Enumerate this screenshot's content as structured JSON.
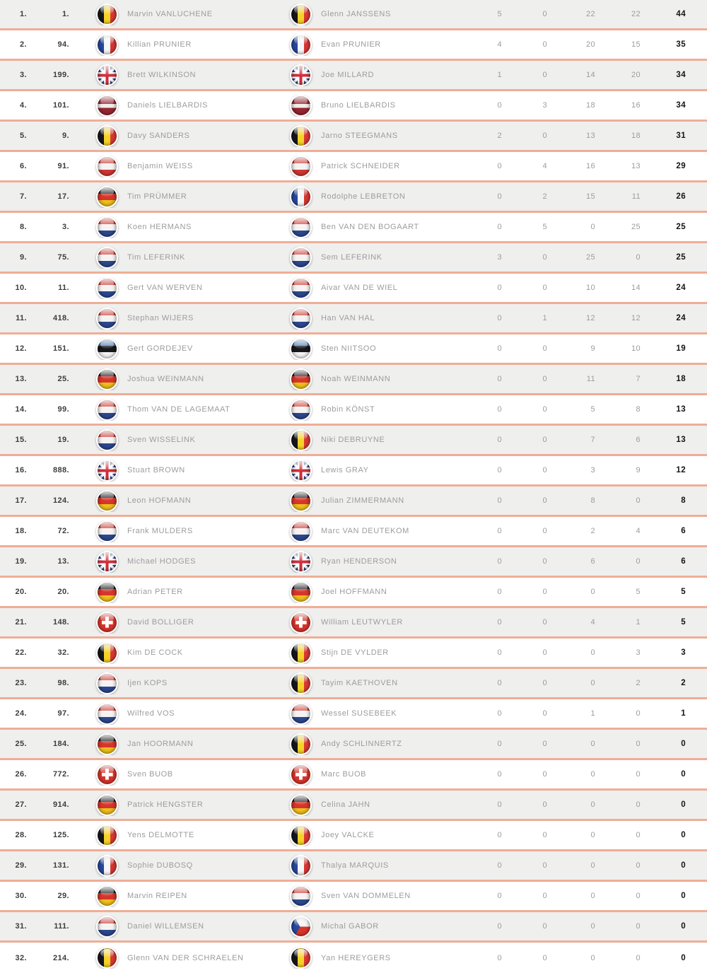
{
  "colors": {
    "row_alt_background": "#efefee",
    "row_background": "#ffffff",
    "separator": "#efad96",
    "name_text": "#9c9c9c",
    "rank_text": "#3d3d3d",
    "total_text": "#141414"
  },
  "table": {
    "rows": [
      {
        "pos": "1.",
        "num": "1.",
        "driver": "Marvin VANLUCHENE",
        "driver_country": "be",
        "passenger": "Glenn JANSSENS",
        "passenger_country": "be",
        "scores": [
          "5",
          "0",
          "22",
          "22"
        ],
        "total": "44"
      },
      {
        "pos": "2.",
        "num": "94.",
        "driver": "Killian PRUNIER",
        "driver_country": "fr",
        "passenger": "Evan PRUNIER",
        "passenger_country": "fr",
        "scores": [
          "4",
          "0",
          "20",
          "15"
        ],
        "total": "35"
      },
      {
        "pos": "3.",
        "num": "199.",
        "driver": "Brett WILKINSON",
        "driver_country": "gb",
        "passenger": "Joe MILLARD",
        "passenger_country": "gb",
        "scores": [
          "1",
          "0",
          "14",
          "20"
        ],
        "total": "34"
      },
      {
        "pos": "4.",
        "num": "101.",
        "driver": "Daniels LIELBARDIS",
        "driver_country": "lv",
        "passenger": "Bruno LIELBARDIS",
        "passenger_country": "lv",
        "scores": [
          "0",
          "3",
          "18",
          "16"
        ],
        "total": "34"
      },
      {
        "pos": "5.",
        "num": "9.",
        "driver": "Davy SANDERS",
        "driver_country": "be",
        "passenger": "Jarno STEEGMANS",
        "passenger_country": "be",
        "scores": [
          "2",
          "0",
          "13",
          "18"
        ],
        "total": "31"
      },
      {
        "pos": "6.",
        "num": "91.",
        "driver": "Benjamin WEISS",
        "driver_country": "at",
        "passenger": "Patrick SCHNEIDER",
        "passenger_country": "at",
        "scores": [
          "0",
          "4",
          "16",
          "13"
        ],
        "total": "29"
      },
      {
        "pos": "7.",
        "num": "17.",
        "driver": "Tim PRÜMMER",
        "driver_country": "de",
        "passenger": "Rodolphe LEBRETON",
        "passenger_country": "fr",
        "scores": [
          "0",
          "2",
          "15",
          "11"
        ],
        "total": "26"
      },
      {
        "pos": "8.",
        "num": "3.",
        "driver": "Koen HERMANS",
        "driver_country": "nl",
        "passenger": "Ben VAN DEN BOGAART",
        "passenger_country": "nl",
        "scores": [
          "0",
          "5",
          "0",
          "25"
        ],
        "total": "25"
      },
      {
        "pos": "9.",
        "num": "75.",
        "driver": "Tim LEFERINK",
        "driver_country": "nl",
        "passenger": "Sem LEFERINK",
        "passenger_country": "nl",
        "scores": [
          "3",
          "0",
          "25",
          "0"
        ],
        "total": "25"
      },
      {
        "pos": "10.",
        "num": "11.",
        "driver": "Gert VAN WERVEN",
        "driver_country": "nl",
        "passenger": "Aivar VAN DE WIEL",
        "passenger_country": "nl",
        "scores": [
          "0",
          "0",
          "10",
          "14"
        ],
        "total": "24"
      },
      {
        "pos": "11.",
        "num": "418.",
        "driver": "Stephan WIJERS",
        "driver_country": "nl",
        "passenger": "Han VAN HAL",
        "passenger_country": "nl",
        "scores": [
          "0",
          "1",
          "12",
          "12"
        ],
        "total": "24"
      },
      {
        "pos": "12.",
        "num": "151.",
        "driver": "Gert GORDEJEV",
        "driver_country": "ee",
        "passenger": "Sten NIITSOO",
        "passenger_country": "ee",
        "scores": [
          "0",
          "0",
          "9",
          "10"
        ],
        "total": "19"
      },
      {
        "pos": "13.",
        "num": "25.",
        "driver": "Joshua WEINMANN",
        "driver_country": "de",
        "passenger": "Noah WEINMANN",
        "passenger_country": "de",
        "scores": [
          "0",
          "0",
          "11",
          "7"
        ],
        "total": "18"
      },
      {
        "pos": "14.",
        "num": "99.",
        "driver": "Thom VAN DE LAGEMAAT",
        "driver_country": "nl",
        "passenger": "Robin KÖNST",
        "passenger_country": "nl",
        "scores": [
          "0",
          "0",
          "5",
          "8"
        ],
        "total": "13"
      },
      {
        "pos": "15.",
        "num": "19.",
        "driver": "Sven WISSELINK",
        "driver_country": "nl",
        "passenger": "Niki DEBRUYNE",
        "passenger_country": "be",
        "scores": [
          "0",
          "0",
          "7",
          "6"
        ],
        "total": "13"
      },
      {
        "pos": "16.",
        "num": "888.",
        "driver": "Stuart BROWN",
        "driver_country": "gb",
        "passenger": "Lewis GRAY",
        "passenger_country": "gb",
        "scores": [
          "0",
          "0",
          "3",
          "9"
        ],
        "total": "12"
      },
      {
        "pos": "17.",
        "num": "124.",
        "driver": "Leon HOFMANN",
        "driver_country": "de",
        "passenger": "Julian ZIMMERMANN",
        "passenger_country": "de",
        "scores": [
          "0",
          "0",
          "8",
          "0"
        ],
        "total": "8"
      },
      {
        "pos": "18.",
        "num": "72.",
        "driver": "Frank MULDERS",
        "driver_country": "nl",
        "passenger": "Marc VAN DEUTEKOM",
        "passenger_country": "nl",
        "scores": [
          "0",
          "0",
          "2",
          "4"
        ],
        "total": "6"
      },
      {
        "pos": "19.",
        "num": "13.",
        "driver": "Michael HODGES",
        "driver_country": "gb",
        "passenger": "Ryan HENDERSON",
        "passenger_country": "gb",
        "scores": [
          "0",
          "0",
          "6",
          "0"
        ],
        "total": "6"
      },
      {
        "pos": "20.",
        "num": "20.",
        "driver": "Adrian PETER",
        "driver_country": "de",
        "passenger": "Joel HOFFMANN",
        "passenger_country": "de",
        "scores": [
          "0",
          "0",
          "0",
          "5"
        ],
        "total": "5"
      },
      {
        "pos": "21.",
        "num": "148.",
        "driver": "David BOLLIGER",
        "driver_country": "ch",
        "passenger": "William LEUTWYLER",
        "passenger_country": "ch",
        "scores": [
          "0",
          "0",
          "4",
          "1"
        ],
        "total": "5"
      },
      {
        "pos": "22.",
        "num": "32.",
        "driver": "Kim DE COCK",
        "driver_country": "be",
        "passenger": "Stijn DE VYLDER",
        "passenger_country": "be",
        "scores": [
          "0",
          "0",
          "0",
          "3"
        ],
        "total": "3"
      },
      {
        "pos": "23.",
        "num": "98.",
        "driver": "Ijen KOPS",
        "driver_country": "nl",
        "passenger": "Tayim KAETHOVEN",
        "passenger_country": "be",
        "scores": [
          "0",
          "0",
          "0",
          "2"
        ],
        "total": "2"
      },
      {
        "pos": "24.",
        "num": "97.",
        "driver": "Wilfred VOS",
        "driver_country": "nl",
        "passenger": "Wessel SUSEBEEK",
        "passenger_country": "nl",
        "scores": [
          "0",
          "0",
          "1",
          "0"
        ],
        "total": "1"
      },
      {
        "pos": "25.",
        "num": "184.",
        "driver": "Jan HOORMANN",
        "driver_country": "de",
        "passenger": "Andy SCHLINNERTZ",
        "passenger_country": "be",
        "scores": [
          "0",
          "0",
          "0",
          "0"
        ],
        "total": "0"
      },
      {
        "pos": "26.",
        "num": "772.",
        "driver": "Sven BUOB",
        "driver_country": "ch",
        "passenger": "Marc BUOB",
        "passenger_country": "ch",
        "scores": [
          "0",
          "0",
          "0",
          "0"
        ],
        "total": "0"
      },
      {
        "pos": "27.",
        "num": "914.",
        "driver": "Patrick HENGSTER",
        "driver_country": "de",
        "passenger": "Celina JAHN",
        "passenger_country": "de",
        "scores": [
          "0",
          "0",
          "0",
          "0"
        ],
        "total": "0"
      },
      {
        "pos": "28.",
        "num": "125.",
        "driver": "Yens DELMOTTE",
        "driver_country": "be",
        "passenger": "Joey VALCKE",
        "passenger_country": "be",
        "scores": [
          "0",
          "0",
          "0",
          "0"
        ],
        "total": "0"
      },
      {
        "pos": "29.",
        "num": "131.",
        "driver": "Sophie DUBOSQ",
        "driver_country": "fr",
        "passenger": "Thalya MARQUIS",
        "passenger_country": "fr",
        "scores": [
          "0",
          "0",
          "0",
          "0"
        ],
        "total": "0"
      },
      {
        "pos": "30.",
        "num": "29.",
        "driver": "Marvin REIPEN",
        "driver_country": "de",
        "passenger": "Sven VAN DOMMELEN",
        "passenger_country": "nl",
        "scores": [
          "0",
          "0",
          "0",
          "0"
        ],
        "total": "0"
      },
      {
        "pos": "31.",
        "num": "111.",
        "driver": "Daniel WILLEMSEN",
        "driver_country": "nl",
        "passenger": "Michal GABOR",
        "passenger_country": "cz",
        "scores": [
          "0",
          "0",
          "0",
          "0"
        ],
        "total": "0"
      },
      {
        "pos": "32.",
        "num": "214.",
        "driver": "Glenn VAN DER SCHRAELEN",
        "driver_country": "be",
        "passenger": "Yan HEREYGERS",
        "passenger_country": "be",
        "scores": [
          "0",
          "0",
          "0",
          "0"
        ],
        "total": "0"
      }
    ]
  }
}
